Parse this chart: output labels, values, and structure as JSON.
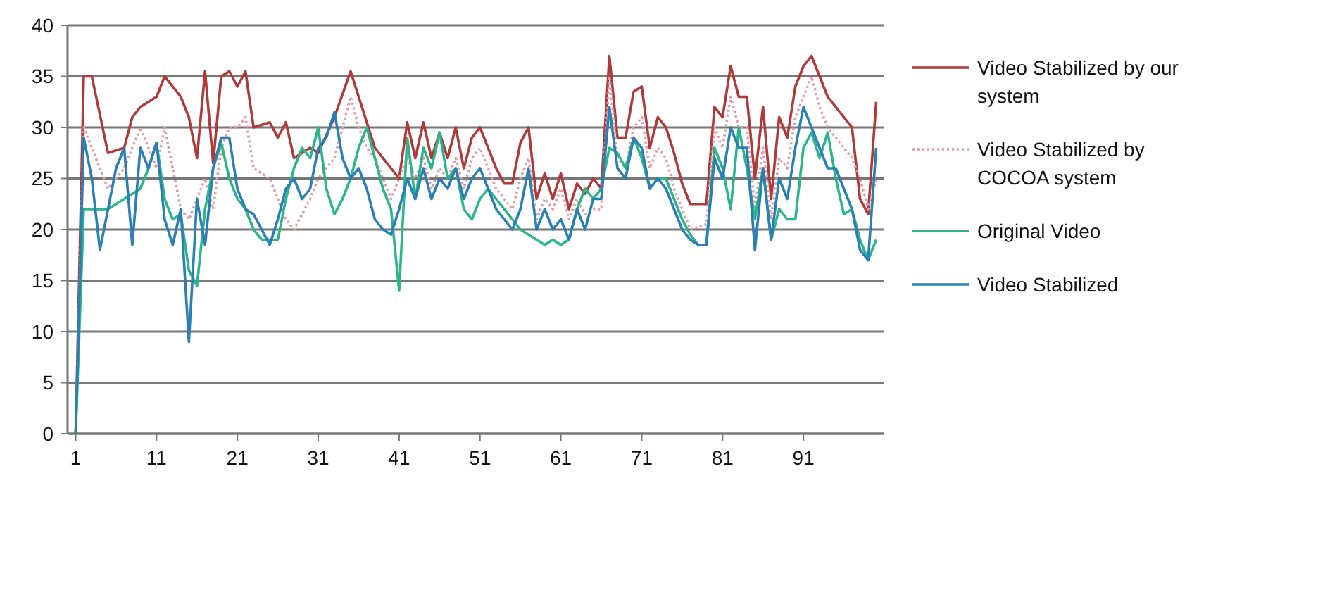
{
  "chart_data": {
    "type": "line",
    "legend": "right",
    "grid": "y",
    "xlim": [
      0,
      101
    ],
    "xticks": [
      1,
      11,
      21,
      31,
      41,
      51,
      61,
      71,
      81,
      91
    ],
    "ylim": [
      0,
      40
    ],
    "yticks": [
      0,
      5,
      10,
      15,
      20,
      25,
      30,
      35,
      40
    ],
    "series": [
      {
        "name": "Video Stabilized by our system",
        "color": "#b03a3a",
        "line_style": "solid",
        "x": [
          1,
          2,
          3,
          5,
          7,
          8,
          9,
          11,
          12,
          14,
          15,
          16,
          17,
          18,
          19,
          20,
          21,
          22,
          23,
          25,
          26,
          27,
          28,
          30,
          31,
          33,
          35,
          36,
          37,
          38,
          39,
          40,
          41,
          42,
          43,
          44,
          45,
          46,
          47,
          48,
          49,
          50,
          51,
          52,
          53,
          54,
          55,
          56,
          57,
          58,
          59,
          60,
          61,
          62,
          63,
          64,
          65,
          66,
          67,
          68,
          69,
          70,
          71,
          72,
          73,
          74,
          75,
          76,
          77,
          79,
          80,
          81,
          82,
          83,
          84,
          85,
          86,
          87,
          88,
          89,
          90,
          91,
          92,
          93,
          94,
          95,
          96,
          97,
          98,
          99,
          100
        ],
        "values": [
          0,
          35,
          35,
          27.5,
          28,
          31,
          32,
          33,
          35,
          33,
          31,
          27,
          35.5,
          26.5,
          35,
          35.5,
          34,
          35.5,
          30,
          30.5,
          29,
          30.5,
          27,
          28,
          27.5,
          31,
          35.5,
          33,
          30.5,
          28,
          27,
          26,
          25,
          30.5,
          27,
          30.5,
          27,
          29.5,
          27,
          30,
          26,
          29,
          30,
          28,
          26,
          24.5,
          24.5,
          28.5,
          30,
          23,
          25.5,
          23,
          25.5,
          22,
          24.5,
          23.5,
          25,
          24,
          37,
          29,
          29,
          33.5,
          34,
          28,
          31,
          30,
          27.5,
          24.5,
          22.5,
          22.5,
          32,
          31,
          36,
          33,
          33,
          25,
          32,
          23,
          31,
          29,
          34,
          36,
          37,
          35,
          33,
          32,
          31,
          30,
          23,
          21.5,
          32.5
        ]
      },
      {
        "name": "Video Stabilized by COCOA system",
        "color": "#e39aa6",
        "line_style": "dotted",
        "x": [
          1,
          2,
          3,
          5,
          7,
          9,
          11,
          12,
          14,
          15,
          16,
          17,
          18,
          19,
          20,
          21,
          22,
          23,
          25,
          26,
          27,
          28,
          30,
          31,
          33,
          35,
          36,
          37,
          38,
          39,
          40,
          41,
          42,
          43,
          44,
          45,
          46,
          47,
          48,
          49,
          50,
          51,
          52,
          53,
          54,
          55,
          56,
          57,
          58,
          59,
          60,
          61,
          62,
          63,
          64,
          65,
          66,
          67,
          68,
          69,
          70,
          71,
          72,
          73,
          74,
          75,
          76,
          77,
          79,
          80,
          81,
          82,
          83,
          84,
          85,
          86,
          87,
          88,
          89,
          90,
          91,
          92,
          93,
          94,
          95,
          96,
          97,
          98,
          99,
          100
        ],
        "values": [
          0,
          30,
          28,
          24,
          26,
          30,
          26,
          30,
          22,
          21,
          23,
          25,
          22,
          28,
          30,
          30,
          31,
          26,
          25,
          23,
          21,
          20,
          23,
          25,
          27,
          33,
          30,
          28,
          27,
          25,
          23,
          25,
          27,
          25,
          27,
          24,
          26,
          25,
          27,
          24,
          27,
          28,
          26,
          24,
          23,
          22,
          25,
          27,
          21,
          23,
          22,
          24,
          21,
          23,
          21.5,
          22,
          22,
          35,
          27,
          26,
          30,
          31,
          26,
          28,
          27,
          24,
          22,
          20,
          20.5,
          30,
          28,
          33,
          30,
          30,
          22,
          28,
          21,
          27,
          26,
          31,
          33,
          35,
          32,
          30,
          29,
          28,
          27,
          25,
          22,
          25
        ]
      },
      {
        "name": "Original Video",
        "color": "#2ab58a",
        "line_style": "solid",
        "x": [
          1,
          2,
          3,
          5,
          6,
          8,
          9,
          10,
          11,
          12,
          13,
          14,
          15,
          16,
          17,
          18,
          19,
          20,
          21,
          22,
          23,
          24,
          26,
          27,
          28,
          29,
          30,
          31,
          32,
          33,
          34,
          35,
          36,
          37,
          38,
          39,
          40,
          41,
          42,
          43,
          44,
          45,
          46,
          47,
          48,
          49,
          50,
          51,
          52,
          53,
          54,
          55,
          56,
          57,
          58,
          59,
          60,
          61,
          62,
          63,
          64,
          65,
          66,
          67,
          68,
          69,
          70,
          71,
          72,
          73,
          74,
          75,
          76,
          77,
          78,
          79,
          80,
          81,
          82,
          83,
          84,
          85,
          86,
          87,
          88,
          89,
          90,
          91,
          92,
          93,
          94,
          95,
          96,
          97,
          98,
          99,
          100
        ],
        "values": [
          0,
          22,
          22,
          22,
          22.5,
          23.5,
          24,
          26,
          28.5,
          23,
          21,
          21.5,
          16,
          14.5,
          22,
          26,
          28.5,
          25,
          23,
          22,
          20,
          19,
          19,
          23,
          26,
          28,
          27,
          30,
          24,
          21.5,
          23,
          25,
          28,
          30,
          27,
          24,
          22,
          14,
          29,
          23,
          28,
          26,
          29.5,
          25,
          26,
          22,
          21,
          23,
          24,
          23,
          22,
          21,
          20,
          19.5,
          19,
          18.5,
          19,
          18.5,
          19,
          22,
          24,
          23,
          24,
          28,
          27.5,
          26,
          29,
          27,
          24,
          25,
          25,
          23,
          21,
          19.5,
          18.5,
          18.5,
          28,
          26,
          22,
          30,
          26,
          21,
          26,
          19,
          22,
          21,
          21,
          28,
          29.5,
          27,
          29.5,
          25,
          21.5,
          22,
          19,
          17,
          19
        ]
      },
      {
        "name": "Video Stabilized",
        "color": "#2a7fb5",
        "line_style": "solid",
        "x": [
          1,
          2,
          3,
          4,
          5,
          6,
          7,
          8,
          9,
          10,
          11,
          12,
          13,
          14,
          15,
          16,
          17,
          18,
          19,
          20,
          21,
          22,
          23,
          24,
          25,
          26,
          27,
          28,
          29,
          30,
          31,
          32,
          33,
          34,
          35,
          36,
          37,
          38,
          39,
          40,
          41,
          42,
          43,
          44,
          45,
          46,
          47,
          48,
          49,
          50,
          51,
          52,
          53,
          54,
          55,
          56,
          57,
          58,
          59,
          60,
          61,
          62,
          63,
          64,
          65,
          66,
          67,
          68,
          69,
          70,
          71,
          72,
          73,
          74,
          75,
          76,
          77,
          78,
          79,
          80,
          81,
          82,
          83,
          84,
          85,
          86,
          87,
          88,
          89,
          90,
          91,
          92,
          93,
          94,
          95,
          96,
          97,
          98,
          99,
          100
        ],
        "values": [
          0,
          29,
          25,
          18,
          22,
          26,
          28,
          18.5,
          28,
          26,
          28.5,
          21,
          18.5,
          22,
          9,
          23,
          18.5,
          26,
          29,
          29,
          24,
          22,
          21.5,
          20,
          18.5,
          21,
          24,
          25,
          23,
          24,
          28,
          29,
          31.5,
          27,
          25,
          26,
          24,
          21,
          20,
          19.5,
          22,
          25,
          23,
          26,
          23,
          25,
          24,
          26,
          23,
          25,
          26,
          24,
          22,
          21,
          20,
          22,
          26,
          20,
          22,
          20,
          21,
          19,
          22,
          20,
          23,
          23,
          32,
          26,
          25,
          29,
          28,
          24,
          25,
          24,
          22,
          20,
          19,
          18.5,
          18.5,
          27,
          25,
          30,
          28,
          28,
          18,
          26,
          19,
          25,
          23,
          28,
          32,
          30,
          28,
          26,
          26,
          24,
          22,
          18,
          17,
          28
        ]
      }
    ]
  }
}
